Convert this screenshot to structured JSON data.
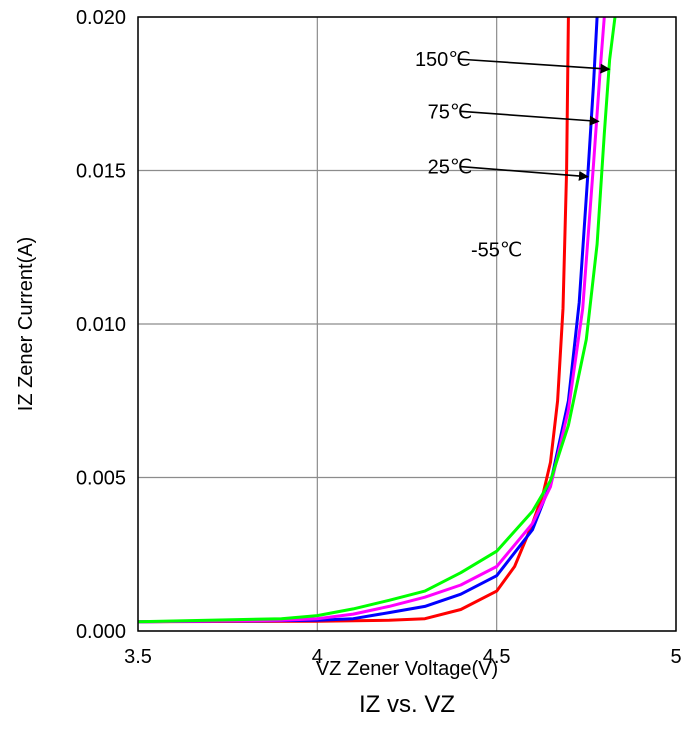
{
  "chart_data": {
    "type": "line",
    "title": "IZ vs. VZ",
    "xlabel": "VZ Zener Voltage(V)",
    "ylabel": "IZ Zener Current(A)",
    "xlim": [
      3.5,
      5
    ],
    "ylim": [
      0,
      0.02
    ],
    "x_ticks": [
      3.5,
      4,
      4.5,
      5
    ],
    "x_tick_labels": [
      "3.5",
      "4",
      "4.5",
      "5"
    ],
    "y_ticks": [
      0,
      0.005,
      0.01,
      0.015,
      0.02
    ],
    "y_tick_labels": [
      "0.000",
      "0.005",
      "0.010",
      "0.015",
      "0.020"
    ],
    "grid": true,
    "legend": "none",
    "series": [
      {
        "name": "-55℃",
        "color": "#ff0000",
        "points": [
          [
            3.5,
            0.0003
          ],
          [
            4.0,
            0.00032
          ],
          [
            4.2,
            0.00035
          ],
          [
            4.3,
            0.0004
          ],
          [
            4.4,
            0.0007
          ],
          [
            4.5,
            0.0013
          ],
          [
            4.55,
            0.0021
          ],
          [
            4.6,
            0.0035
          ],
          [
            4.63,
            0.0045
          ],
          [
            4.65,
            0.0055
          ],
          [
            4.67,
            0.0075
          ],
          [
            4.685,
            0.0105
          ],
          [
            4.695,
            0.015
          ],
          [
            4.7,
            0.02
          ]
        ]
      },
      {
        "name": "25℃",
        "color": "#0000ff",
        "points": [
          [
            3.5,
            0.0003
          ],
          [
            4.0,
            0.00035
          ],
          [
            4.1,
            0.0004
          ],
          [
            4.2,
            0.0006
          ],
          [
            4.3,
            0.0008
          ],
          [
            4.4,
            0.0012
          ],
          [
            4.5,
            0.0018
          ],
          [
            4.6,
            0.0033
          ],
          [
            4.65,
            0.0048
          ],
          [
            4.7,
            0.0075
          ],
          [
            4.73,
            0.0107
          ],
          [
            4.755,
            0.015
          ],
          [
            4.77,
            0.0178
          ],
          [
            4.78,
            0.02
          ]
        ]
      },
      {
        "name": "75℃",
        "color": "#ff00ff",
        "points": [
          [
            3.5,
            0.0003
          ],
          [
            3.9,
            0.00035
          ],
          [
            4.0,
            0.0004
          ],
          [
            4.1,
            0.00055
          ],
          [
            4.2,
            0.0008
          ],
          [
            4.3,
            0.0011
          ],
          [
            4.4,
            0.0015
          ],
          [
            4.5,
            0.0021
          ],
          [
            4.6,
            0.0035
          ],
          [
            4.65,
            0.0047
          ],
          [
            4.7,
            0.0072
          ],
          [
            4.74,
            0.0105
          ],
          [
            4.77,
            0.0152
          ],
          [
            4.79,
            0.0185
          ],
          [
            4.8,
            0.02
          ]
        ]
      },
      {
        "name": "150℃",
        "color": "#00ff00",
        "points": [
          [
            3.5,
            0.0003
          ],
          [
            3.9,
            0.0004
          ],
          [
            4.0,
            0.0005
          ],
          [
            4.1,
            0.00072
          ],
          [
            4.2,
            0.001
          ],
          [
            4.3,
            0.0013
          ],
          [
            4.4,
            0.0019
          ],
          [
            4.5,
            0.0026
          ],
          [
            4.6,
            0.0039
          ],
          [
            4.65,
            0.0049
          ],
          [
            4.7,
            0.0067
          ],
          [
            4.75,
            0.0095
          ],
          [
            4.78,
            0.0126
          ],
          [
            4.8,
            0.0162
          ],
          [
            4.815,
            0.0186
          ],
          [
            4.83,
            0.02
          ]
        ]
      }
    ],
    "annotations": [
      {
        "text": "150℃",
        "text_at": [
          4.35,
          0.0184
        ],
        "arrow_to": [
          4.82,
          0.0183
        ]
      },
      {
        "text": "75℃",
        "text_at": [
          4.37,
          0.0167
        ],
        "arrow_to": [
          4.79,
          0.0166
        ]
      },
      {
        "text": "25℃",
        "text_at": [
          4.37,
          0.0149
        ],
        "arrow_to": [
          4.76,
          0.0148
        ]
      },
      {
        "text": "-55℃",
        "text_at": [
          4.5,
          0.0122
        ],
        "arrow_to": null
      }
    ]
  }
}
